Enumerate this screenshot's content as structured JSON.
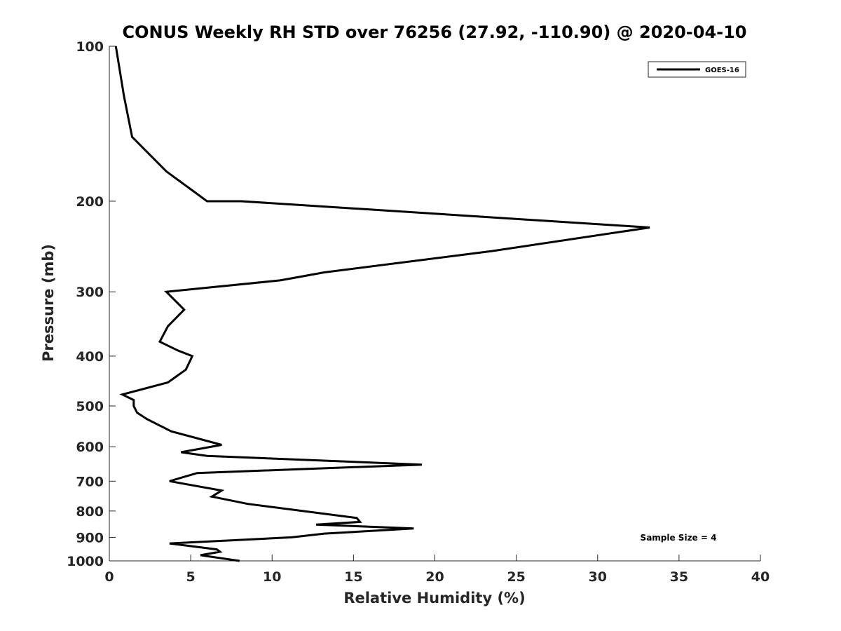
{
  "chart_data": {
    "type": "line",
    "title": "CONUS Weekly RH STD over 76256 (27.92, -110.90) @ 2020-04-10",
    "xlabel": "Relative Humidity (%)",
    "ylabel": "Pressure (mb)",
    "xlim": [
      0,
      40
    ],
    "ylim": [
      100,
      1000
    ],
    "y_scale": "log",
    "y_reversed": true,
    "xticks": [
      0,
      5,
      10,
      15,
      20,
      25,
      30,
      35,
      40
    ],
    "yticks": [
      100,
      200,
      300,
      400,
      500,
      600,
      700,
      800,
      900,
      1000
    ],
    "grid": false,
    "legend_position": "top-right",
    "annotation": "Sample Size = 4",
    "series": [
      {
        "name": "GOES-16",
        "color": "#000000",
        "points": [
          [
            0.4,
            100
          ],
          [
            0.9,
            125
          ],
          [
            1.4,
            150
          ],
          [
            3.5,
            175
          ],
          [
            6.0,
            200
          ],
          [
            8.1,
            200
          ],
          [
            33.2,
            225
          ],
          [
            23.5,
            250
          ],
          [
            13.2,
            275
          ],
          [
            10.5,
            285
          ],
          [
            3.5,
            300
          ],
          [
            4.6,
            325
          ],
          [
            3.6,
            350
          ],
          [
            3.1,
            375
          ],
          [
            4.2,
            390
          ],
          [
            5.1,
            400
          ],
          [
            4.7,
            425
          ],
          [
            3.6,
            450
          ],
          [
            0.8,
            475
          ],
          [
            1.5,
            487
          ],
          [
            1.5,
            500
          ],
          [
            1.7,
            515
          ],
          [
            2.3,
            530
          ],
          [
            3.8,
            560
          ],
          [
            6.9,
            595
          ],
          [
            4.4,
            615
          ],
          [
            6.0,
            625
          ],
          [
            19.2,
            650
          ],
          [
            5.4,
            675
          ],
          [
            3.7,
            700
          ],
          [
            6.9,
            730
          ],
          [
            6.3,
            750
          ],
          [
            8.5,
            775
          ],
          [
            15.2,
            825
          ],
          [
            15.4,
            840
          ],
          [
            12.7,
            850
          ],
          [
            18.7,
            865
          ],
          [
            13.2,
            885
          ],
          [
            11.2,
            900
          ],
          [
            3.7,
            925
          ],
          [
            6.6,
            950
          ],
          [
            6.8,
            960
          ],
          [
            5.6,
            975
          ],
          [
            8.0,
            1000
          ]
        ]
      }
    ]
  }
}
